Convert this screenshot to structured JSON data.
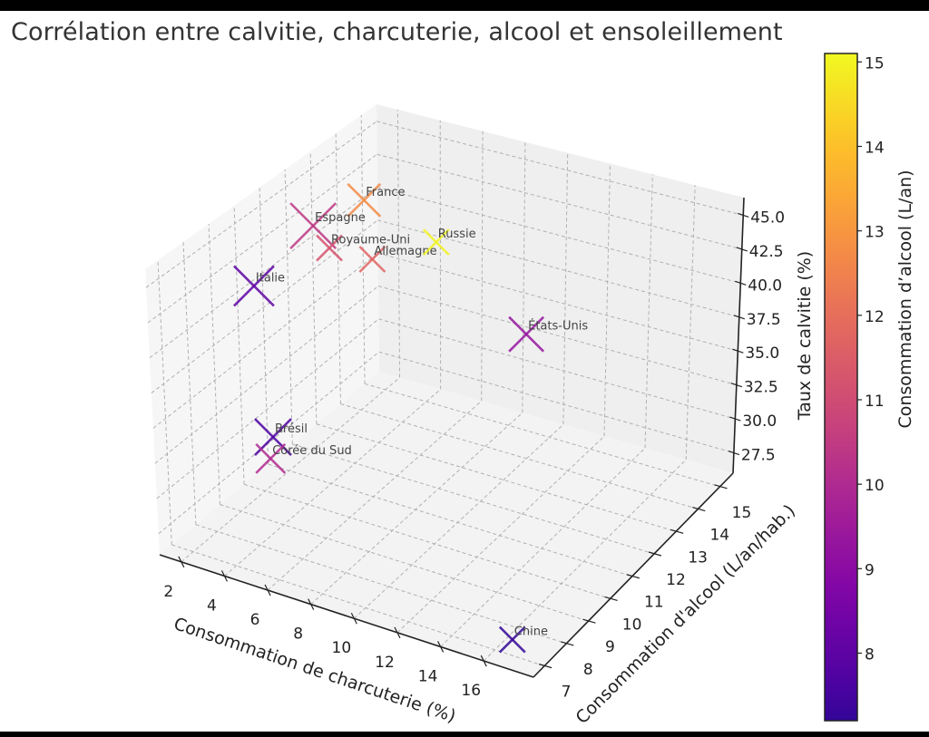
{
  "chart_data": {
    "type": "scatter3d",
    "title": "Corrélation entre calvitie, charcuterie, alcool et ensoleillement",
    "xlabel": "Consommation de charcuterie (%)",
    "ylabel": "Consommation d'alcool (L/an/hab.)",
    "zlabel": "Taux de calvitie (%)",
    "xlim": [
      1.0,
      18.3
    ],
    "ylim": [
      6.5,
      15.6
    ],
    "zlim": [
      26.0,
      46.3
    ],
    "x_ticks": [
      "2",
      "4",
      "6",
      "8",
      "10",
      "12",
      "14",
      "16"
    ],
    "y_ticks": [
      "7",
      "8",
      "9",
      "10",
      "11",
      "12",
      "13",
      "14",
      "15"
    ],
    "z_ticks": [
      "27.5",
      "30.0",
      "32.5",
      "35.0",
      "37.5",
      "40.0",
      "42.5",
      "45.0"
    ],
    "grid": true,
    "marker": "x",
    "colormap": "plasma",
    "colorbar": {
      "label": "Consommation d’alcool (L/an)",
      "range": [
        7.2,
        15.1
      ],
      "ticks": [
        "8",
        "9",
        "10",
        "11",
        "12",
        "13",
        "14",
        "15"
      ],
      "placement": "right"
    },
    "points": [
      {
        "label": "France",
        "x": 3.8,
        "y": 12.7,
        "z": 44.3
      },
      {
        "label": "Espagne",
        "x": 4.1,
        "y": 10.4,
        "z": 45.7
      },
      {
        "label": "Royaume-Uni",
        "x": 3.9,
        "y": 11.2,
        "z": 42.9
      },
      {
        "label": "Allemagne",
        "x": 5.3,
        "y": 11.7,
        "z": 42.0
      },
      {
        "label": "Russie",
        "x": 4.5,
        "y": 15.0,
        "z": 38.2
      },
      {
        "label": "Italie",
        "x": 4.1,
        "y": 8.0,
        "z": 44.6
      },
      {
        "label": "États-Unis",
        "x": 14.9,
        "y": 9.3,
        "z": 44.3
      },
      {
        "label": "Brésil",
        "x": 5.1,
        "y": 7.7,
        "z": 34.7
      },
      {
        "label": "Corée du Sud",
        "x": 2.3,
        "y": 10.0,
        "z": 28.5
      },
      {
        "label": "Chine",
        "x": 16.6,
        "y": 7.2,
        "z": 26.7
      }
    ]
  }
}
